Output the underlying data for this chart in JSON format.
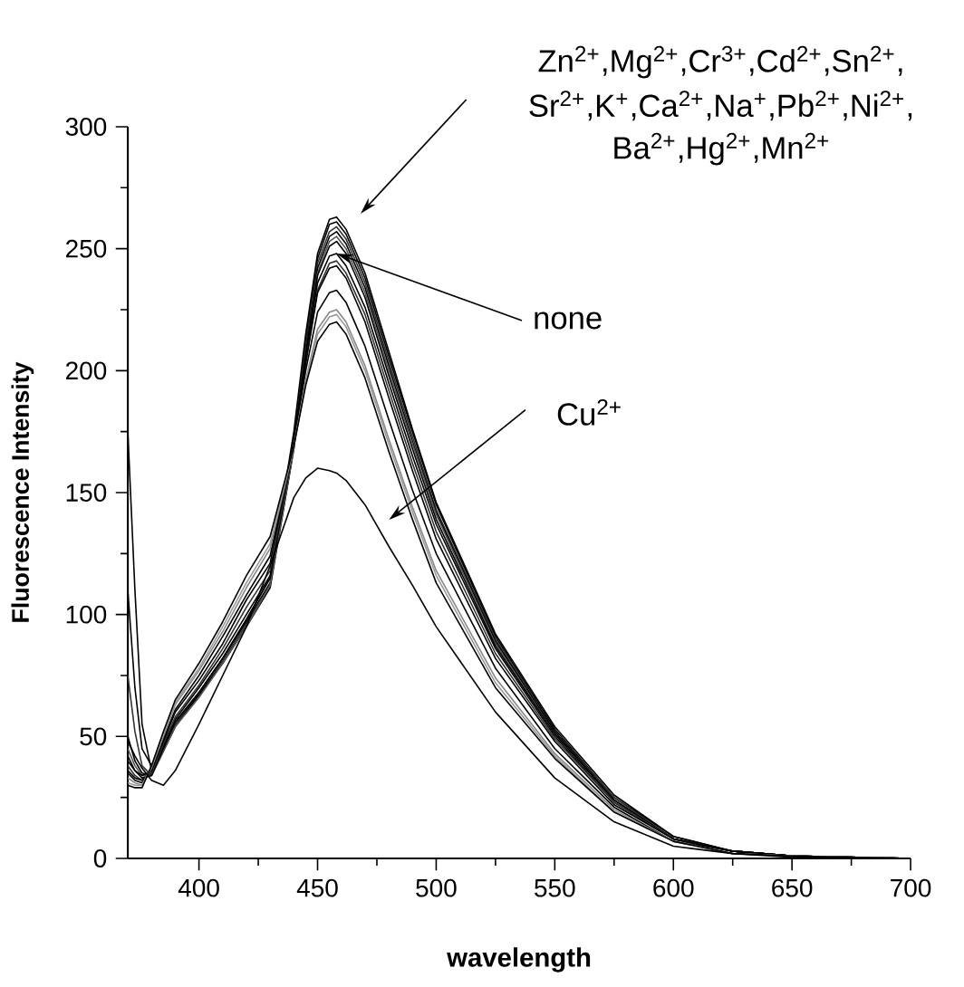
{
  "chart_data": {
    "type": "line",
    "xlabel": "wavelength",
    "ylabel": "Fluorescence Intensity",
    "xlim": [
      370,
      700
    ],
    "ylim": [
      0,
      300
    ],
    "xticks": [
      400,
      450,
      500,
      550,
      600,
      650,
      700
    ],
    "yticks": [
      0,
      50,
      100,
      150,
      200,
      250,
      300
    ],
    "x": [
      370,
      373,
      376,
      380,
      385,
      390,
      400,
      410,
      420,
      430,
      440,
      445,
      450,
      455,
      458,
      462,
      470,
      480,
      490,
      500,
      525,
      550,
      575,
      600,
      625,
      650,
      700
    ],
    "series": [
      {
        "color": "#000000",
        "values": [
          110,
          70,
          45,
          38,
          48,
          56,
          68,
          82,
          98,
          115,
          175,
          215,
          248,
          262,
          263,
          258,
          240,
          208,
          176,
          146,
          92,
          54,
          26,
          9,
          3,
          1,
          0
        ]
      },
      {
        "color": "#000000",
        "values": [
          175,
          110,
          55,
          36,
          46,
          55,
          68,
          82,
          97,
          113,
          172,
          212,
          246,
          260,
          261,
          256,
          238,
          206,
          175,
          145,
          91,
          53,
          25,
          9,
          3,
          1,
          0
        ]
      },
      {
        "color": "#333333",
        "values": [
          75,
          52,
          38,
          34,
          45,
          55,
          67,
          81,
          96,
          112,
          170,
          210,
          244,
          257,
          259,
          254,
          236,
          204,
          173,
          143,
          90,
          52,
          25,
          8,
          3,
          1,
          0
        ]
      },
      {
        "color": "#000000",
        "values": [
          50,
          40,
          35,
          34,
          44,
          54,
          67,
          80,
          95,
          111,
          168,
          208,
          242,
          255,
          257,
          252,
          234,
          202,
          171,
          142,
          89,
          52,
          24,
          8,
          3,
          1,
          0
        ]
      },
      {
        "color": "#555555",
        "values": [
          45,
          38,
          34,
          34,
          44,
          54,
          66,
          80,
          95,
          112,
          168,
          207,
          240,
          253,
          255,
          250,
          232,
          200,
          170,
          141,
          88,
          51,
          24,
          8,
          3,
          1,
          0
        ]
      },
      {
        "color": "#000000",
        "values": [
          42,
          36,
          33,
          34,
          45,
          56,
          68,
          82,
          98,
          115,
          170,
          207,
          239,
          251,
          253,
          248,
          230,
          198,
          168,
          139,
          87,
          51,
          24,
          8,
          3,
          1,
          0
        ]
      },
      {
        "color": "#000000",
        "values": [
          40,
          36,
          34,
          36,
          46,
          57,
          70,
          84,
          100,
          116,
          170,
          205,
          236,
          247,
          248,
          243,
          226,
          195,
          165,
          137,
          86,
          50,
          23,
          8,
          3,
          1,
          0
        ]
      },
      {
        "color": "#333333",
        "values": [
          38,
          34,
          32,
          35,
          47,
          58,
          71,
          86,
          103,
          118,
          170,
          203,
          233,
          244,
          245,
          240,
          223,
          192,
          162,
          134,
          84,
          49,
          23,
          8,
          3,
          1,
          0
        ]
      },
      {
        "color": "#000000",
        "values": [
          36,
          33,
          32,
          36,
          48,
          60,
          73,
          88,
          106,
          121,
          171,
          203,
          232,
          242,
          243,
          238,
          220,
          189,
          159,
          131,
          82,
          48,
          22,
          8,
          3,
          1,
          0
        ]
      },
      {
        "color": "#000000",
        "values": [
          35,
          32,
          31,
          36,
          49,
          61,
          75,
          91,
          108,
          124,
          170,
          200,
          224,
          232,
          233,
          228,
          210,
          180,
          151,
          125,
          78,
          45,
          21,
          7,
          3,
          1,
          0
        ]
      },
      {
        "color": "#888888",
        "values": [
          33,
          31,
          30,
          37,
          50,
          63,
          77,
          93,
          111,
          127,
          169,
          196,
          217,
          224,
          225,
          220,
          202,
          172,
          144,
          118,
          74,
          43,
          20,
          7,
          2,
          1,
          0
        ]
      },
      {
        "color": "#999999",
        "values": [
          31,
          30,
          30,
          38,
          51,
          64,
          78,
          95,
          113,
          129,
          169,
          195,
          215,
          222,
          223,
          218,
          200,
          170,
          142,
          116,
          72,
          42,
          19,
          7,
          2,
          1,
          0
        ]
      },
      {
        "color": "#000000",
        "values": [
          30,
          29,
          29,
          38,
          52,
          65,
          80,
          97,
          116,
          132,
          169,
          194,
          212,
          219,
          220,
          215,
          197,
          167,
          139,
          113,
          70,
          41,
          19,
          7,
          2,
          1,
          0
        ]
      },
      {
        "color": "#000000",
        "values": [
          48,
          42,
          37,
          32,
          30,
          36,
          55,
          75,
          95,
          120,
          148,
          156,
          160,
          159,
          158,
          155,
          145,
          128,
          112,
          95,
          60,
          33,
          15,
          5,
          2,
          0.5,
          0
        ]
      }
    ],
    "annotations": [
      "Zn$^{2+}$,Mg$^{2+}$,Cr$^{3+}$,Cd$^{2+}$,Sn$^{2+}$,",
      "Sr$^{2+}$,K$^{+}$,Ca$^{2+}$,Na$^{+}$,Pb$^{2+}$,Ni$^{2+}$,",
      "Ba$^{2+}$,Hg$^{2+}$,Mn$^{2+}$",
      {
        "text": "none",
        "x": 458,
        "y": 248
      },
      "Cu$^{2+}$"
    ]
  }
}
